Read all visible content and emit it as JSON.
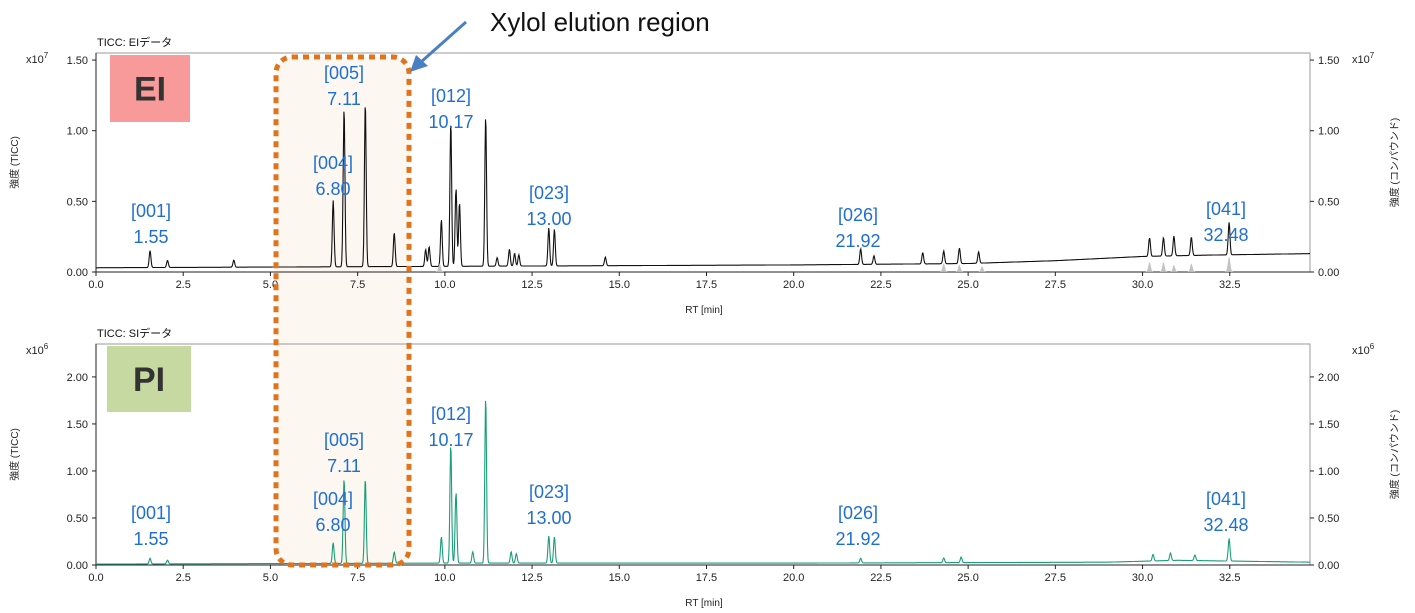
{
  "annotation": "Xylol elution region",
  "colors": {
    "axis": "#222222",
    "ei_trace": "#111111",
    "ei_compound": "#bdbdbd",
    "pi_trace": "#1a9e78",
    "peak_label": "#1f6fd1",
    "region_border": "#e0741c",
    "region_fill": "#fdf7f2",
    "arrow": "#4a7fc1",
    "ei_badge": "#f99a9a",
    "pi_badge": "#c5d9a0"
  },
  "chart_data": [
    {
      "type": "line",
      "panel_title": "TICC: EIデータ",
      "badge": "EI",
      "multiplier": "x10",
      "exponent": "7",
      "ylabel_left": "強度 (TICC)",
      "ylabel_right": "強度 (コンパウンド)",
      "xlabel": "RT [min]",
      "xlim": [
        0,
        34.8
      ],
      "ylim": [
        0,
        1.55
      ],
      "xticks": [
        "0.0",
        "2.5",
        "5.0",
        "7.5",
        "10.0",
        "12.5",
        "15.0",
        "17.5",
        "20.0",
        "22.5",
        "25.0",
        "27.5",
        "30.0",
        "32.5"
      ],
      "yticks": [
        "0.00",
        "0.50",
        "1.00",
        "1.50"
      ],
      "series": [
        {
          "name": "TICC",
          "baseline": [
            [
              0,
              0.03
            ],
            [
              5,
              0.035
            ],
            [
              10,
              0.04
            ],
            [
              15,
              0.045
            ],
            [
              20,
              0.05
            ],
            [
              25,
              0.06
            ],
            [
              27.5,
              0.08
            ],
            [
              30,
              0.11
            ],
            [
              32,
              0.12
            ],
            [
              34.8,
              0.13
            ]
          ],
          "peaks": [
            [
              1.55,
              0.12
            ],
            [
              2.05,
              0.05
            ],
            [
              3.95,
              0.05
            ],
            [
              6.8,
              0.47
            ],
            [
              7.11,
              1.12
            ],
            [
              7.72,
              1.16
            ],
            [
              8.55,
              0.24
            ],
            [
              9.45,
              0.12
            ],
            [
              9.55,
              0.14
            ],
            [
              9.9,
              0.33
            ],
            [
              10.17,
              1.02
            ],
            [
              10.32,
              0.55
            ],
            [
              10.42,
              0.45
            ],
            [
              11.17,
              1.06
            ],
            [
              11.5,
              0.06
            ],
            [
              11.85,
              0.12
            ],
            [
              12.0,
              0.09
            ],
            [
              12.12,
              0.08
            ],
            [
              12.98,
              0.27
            ],
            [
              13.14,
              0.26
            ],
            [
              14.6,
              0.06
            ],
            [
              21.92,
              0.11
            ],
            [
              22.3,
              0.06
            ],
            [
              23.7,
              0.08
            ],
            [
              24.3,
              0.09
            ],
            [
              24.75,
              0.11
            ],
            [
              25.3,
              0.08
            ],
            [
              30.2,
              0.13
            ],
            [
              30.6,
              0.13
            ],
            [
              30.9,
              0.14
            ],
            [
              31.4,
              0.13
            ],
            [
              32.48,
              0.23
            ]
          ]
        },
        {
          "name": "Compounds",
          "peaks": [
            [
              9.85,
              0.06
            ],
            [
              24.3,
              0.06
            ],
            [
              24.75,
              0.05
            ],
            [
              25.4,
              0.04
            ],
            [
              30.2,
              0.07
            ],
            [
              30.6,
              0.07
            ],
            [
              30.9,
              0.05
            ],
            [
              31.4,
              0.06
            ],
            [
              32.48,
              0.11
            ]
          ]
        }
      ],
      "annotations": [
        {
          "compound": "[001]",
          "rt": "1.55"
        },
        {
          "compound": "[004]",
          "rt": "6.80"
        },
        {
          "compound": "[005]",
          "rt": "7.11"
        },
        {
          "compound": "[012]",
          "rt": "10.17"
        },
        {
          "compound": "[023]",
          "rt": "13.00"
        },
        {
          "compound": "[026]",
          "rt": "21.92"
        },
        {
          "compound": "[041]",
          "rt": "32.48"
        }
      ]
    },
    {
      "type": "line",
      "panel_title": "TICC: SIデータ",
      "badge": "PI",
      "multiplier": "x10",
      "exponent": "6",
      "ylabel_left": "強度 (TICC)",
      "ylabel_right": "強度 (コンパウンド)",
      "xlabel": "RT [min]",
      "xlim": [
        0,
        34.8
      ],
      "ylim": [
        0,
        2.35
      ],
      "xticks": [
        "0.0",
        "2.5",
        "5.0",
        "7.5",
        "10.0",
        "12.5",
        "15.0",
        "17.5",
        "20.0",
        "22.5",
        "25.0",
        "27.5",
        "30.0",
        "32.5"
      ],
      "yticks": [
        "0.00",
        "0.50",
        "1.00",
        "1.50",
        "2.00"
      ],
      "series": [
        {
          "name": "TICC",
          "baseline": [
            [
              0,
              0.01
            ],
            [
              10,
              0.02
            ],
            [
              20,
              0.02
            ],
            [
              29,
              0.03
            ],
            [
              31,
              0.05
            ],
            [
              34.8,
              0.03
            ]
          ],
          "peaks": [
            [
              1.55,
              0.06
            ],
            [
              2.05,
              0.04
            ],
            [
              6.8,
              0.22
            ],
            [
              7.11,
              0.9
            ],
            [
              7.72,
              0.9
            ],
            [
              8.55,
              0.12
            ],
            [
              9.9,
              0.28
            ],
            [
              10.17,
              1.26
            ],
            [
              10.32,
              0.75
            ],
            [
              10.8,
              0.12
            ],
            [
              11.17,
              1.76
            ],
            [
              11.9,
              0.12
            ],
            [
              12.05,
              0.1
            ],
            [
              12.98,
              0.29
            ],
            [
              13.14,
              0.28
            ],
            [
              21.92,
              0.05
            ],
            [
              24.3,
              0.05
            ],
            [
              24.8,
              0.06
            ],
            [
              30.3,
              0.07
            ],
            [
              30.8,
              0.08
            ],
            [
              31.5,
              0.06
            ],
            [
              32.48,
              0.24
            ]
          ]
        }
      ],
      "annotations": [
        {
          "compound": "[001]",
          "rt": "1.55"
        },
        {
          "compound": "[004]",
          "rt": "6.80"
        },
        {
          "compound": "[005]",
          "rt": "7.11"
        },
        {
          "compound": "[012]",
          "rt": "10.17"
        },
        {
          "compound": "[023]",
          "rt": "13.00"
        },
        {
          "compound": "[026]",
          "rt": "21.92"
        },
        {
          "compound": "[041]",
          "rt": "32.48"
        }
      ]
    }
  ]
}
